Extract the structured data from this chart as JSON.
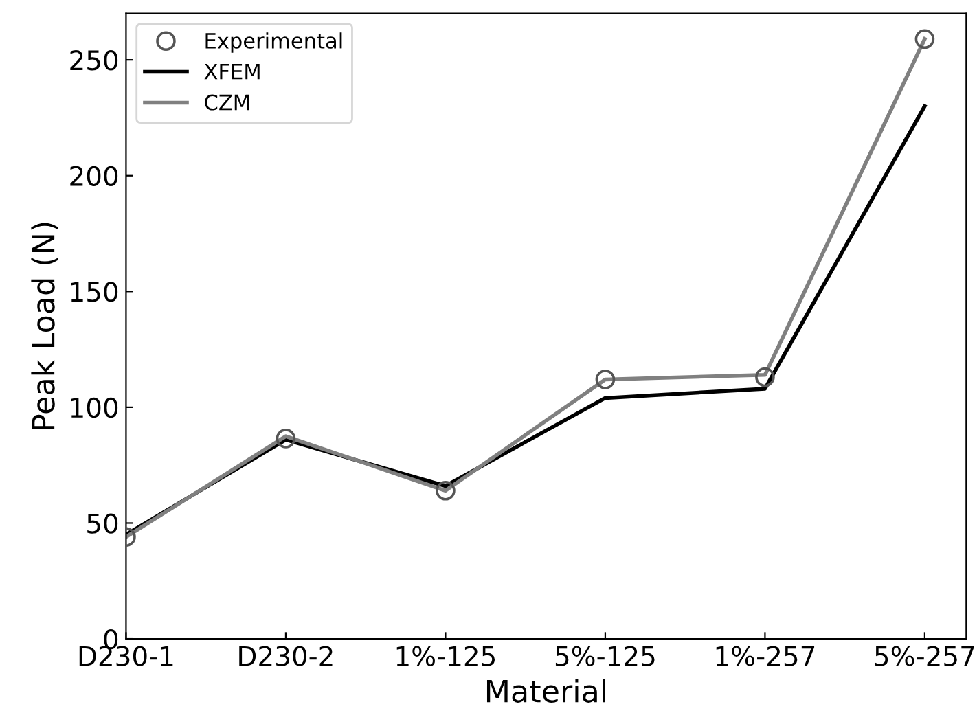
{
  "chart_data": {
    "type": "line",
    "xlabel": "Material",
    "ylabel": "Peak Load (N)",
    "categories": [
      "D230-1",
      "D230-2",
      "1%-125",
      "5%-125",
      "1%-257",
      "5%-257"
    ],
    "ylim": [
      0,
      270
    ],
    "yticks": [
      0,
      50,
      100,
      150,
      200,
      250
    ],
    "grid": false,
    "legend": "top left",
    "series": [
      {
        "name": "Experimental",
        "type": "scatter",
        "color": "#555555",
        "marker": "circle",
        "values": [
          44,
          86.5,
          64,
          112,
          113,
          259
        ]
      },
      {
        "name": "XFEM",
        "color": "#000000",
        "values": [
          45,
          86,
          66,
          104,
          108,
          230
        ]
      },
      {
        "name": "CZM",
        "color": "#808080",
        "values": [
          44,
          87.5,
          64,
          112,
          114,
          259
        ]
      }
    ]
  }
}
